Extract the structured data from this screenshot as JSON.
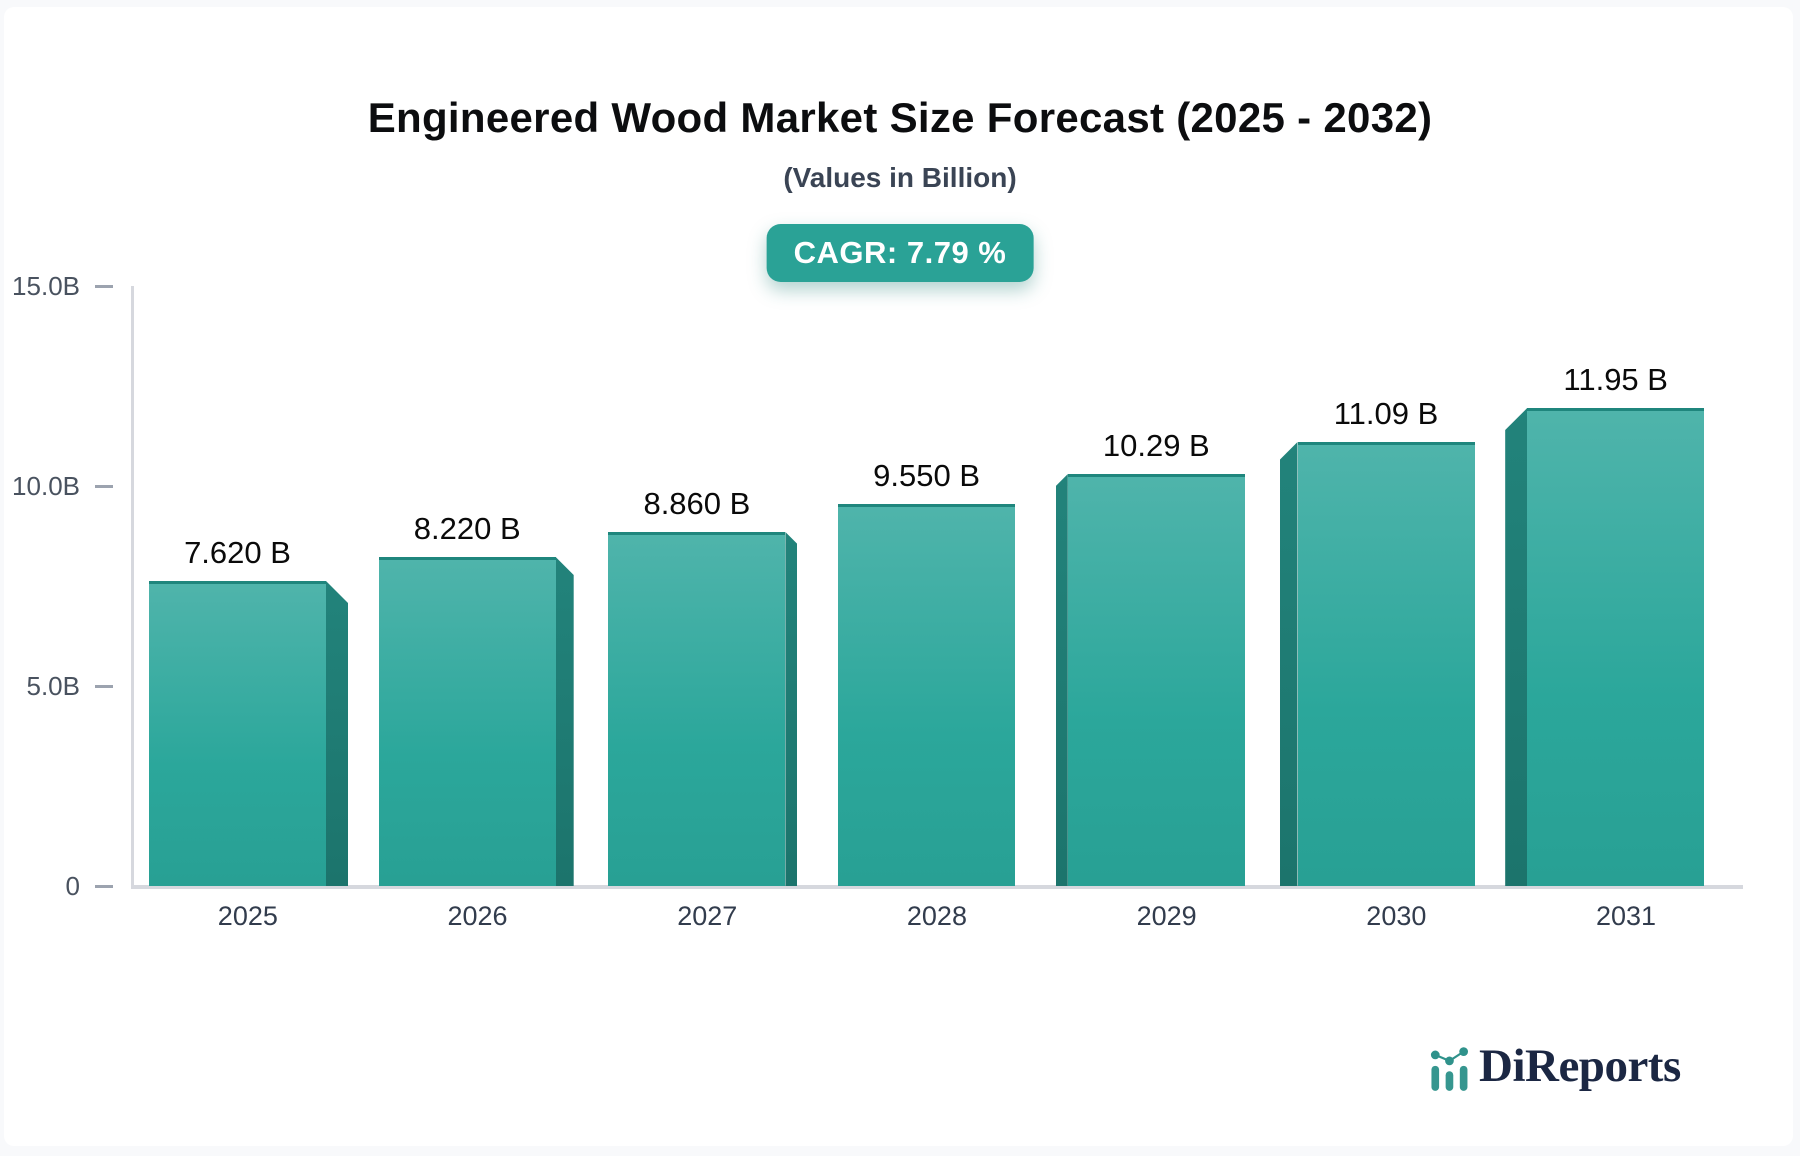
{
  "header": {
    "title": "Engineered Wood Market Size Forecast (2025 - 2032)",
    "subtitle": "(Values in Billion)",
    "cagr_badge": "CAGR: 7.79 %"
  },
  "chart_data": {
    "type": "bar",
    "title": "Engineered Wood Market Size Forecast (2025 - 2032)",
    "subtitle": "(Values in Billion)",
    "categories": [
      "2025",
      "2026",
      "2027",
      "2028",
      "2029",
      "2030",
      "2031"
    ],
    "values": [
      7.62,
      8.22,
      8.86,
      9.55,
      10.29,
      11.09,
      11.95
    ],
    "value_labels": [
      "7.620 B",
      "8.220 B",
      "8.860 B",
      "9.550 B",
      "10.29 B",
      "11.09 B",
      "11.95 B"
    ],
    "unit": "Billion",
    "annotation": "CAGR: 7.79 %",
    "xlabel": "",
    "ylabel": "",
    "ylim": [
      0,
      15
    ],
    "y_ticks": [
      {
        "label": "15.0B",
        "value": 15
      },
      {
        "label": "10.0B",
        "value": 10
      },
      {
        "label": "5.0B",
        "value": 5
      },
      {
        "label": "0",
        "value": 0
      }
    ],
    "grid": false,
    "legend": "none",
    "style": "3d-perspective-bars",
    "colors": {
      "bar_face_top": "#4fb4ab",
      "bar_face_bottom": "#28a094",
      "bar_side": "#1e7c74",
      "badge": "#2aa296",
      "axis_line": "#d6d8de",
      "label_text": "#0a0a0a"
    }
  },
  "branding": {
    "logo_text": "DiReports",
    "logo_navy": "#1b2743",
    "logo_teal": "#36968f"
  }
}
